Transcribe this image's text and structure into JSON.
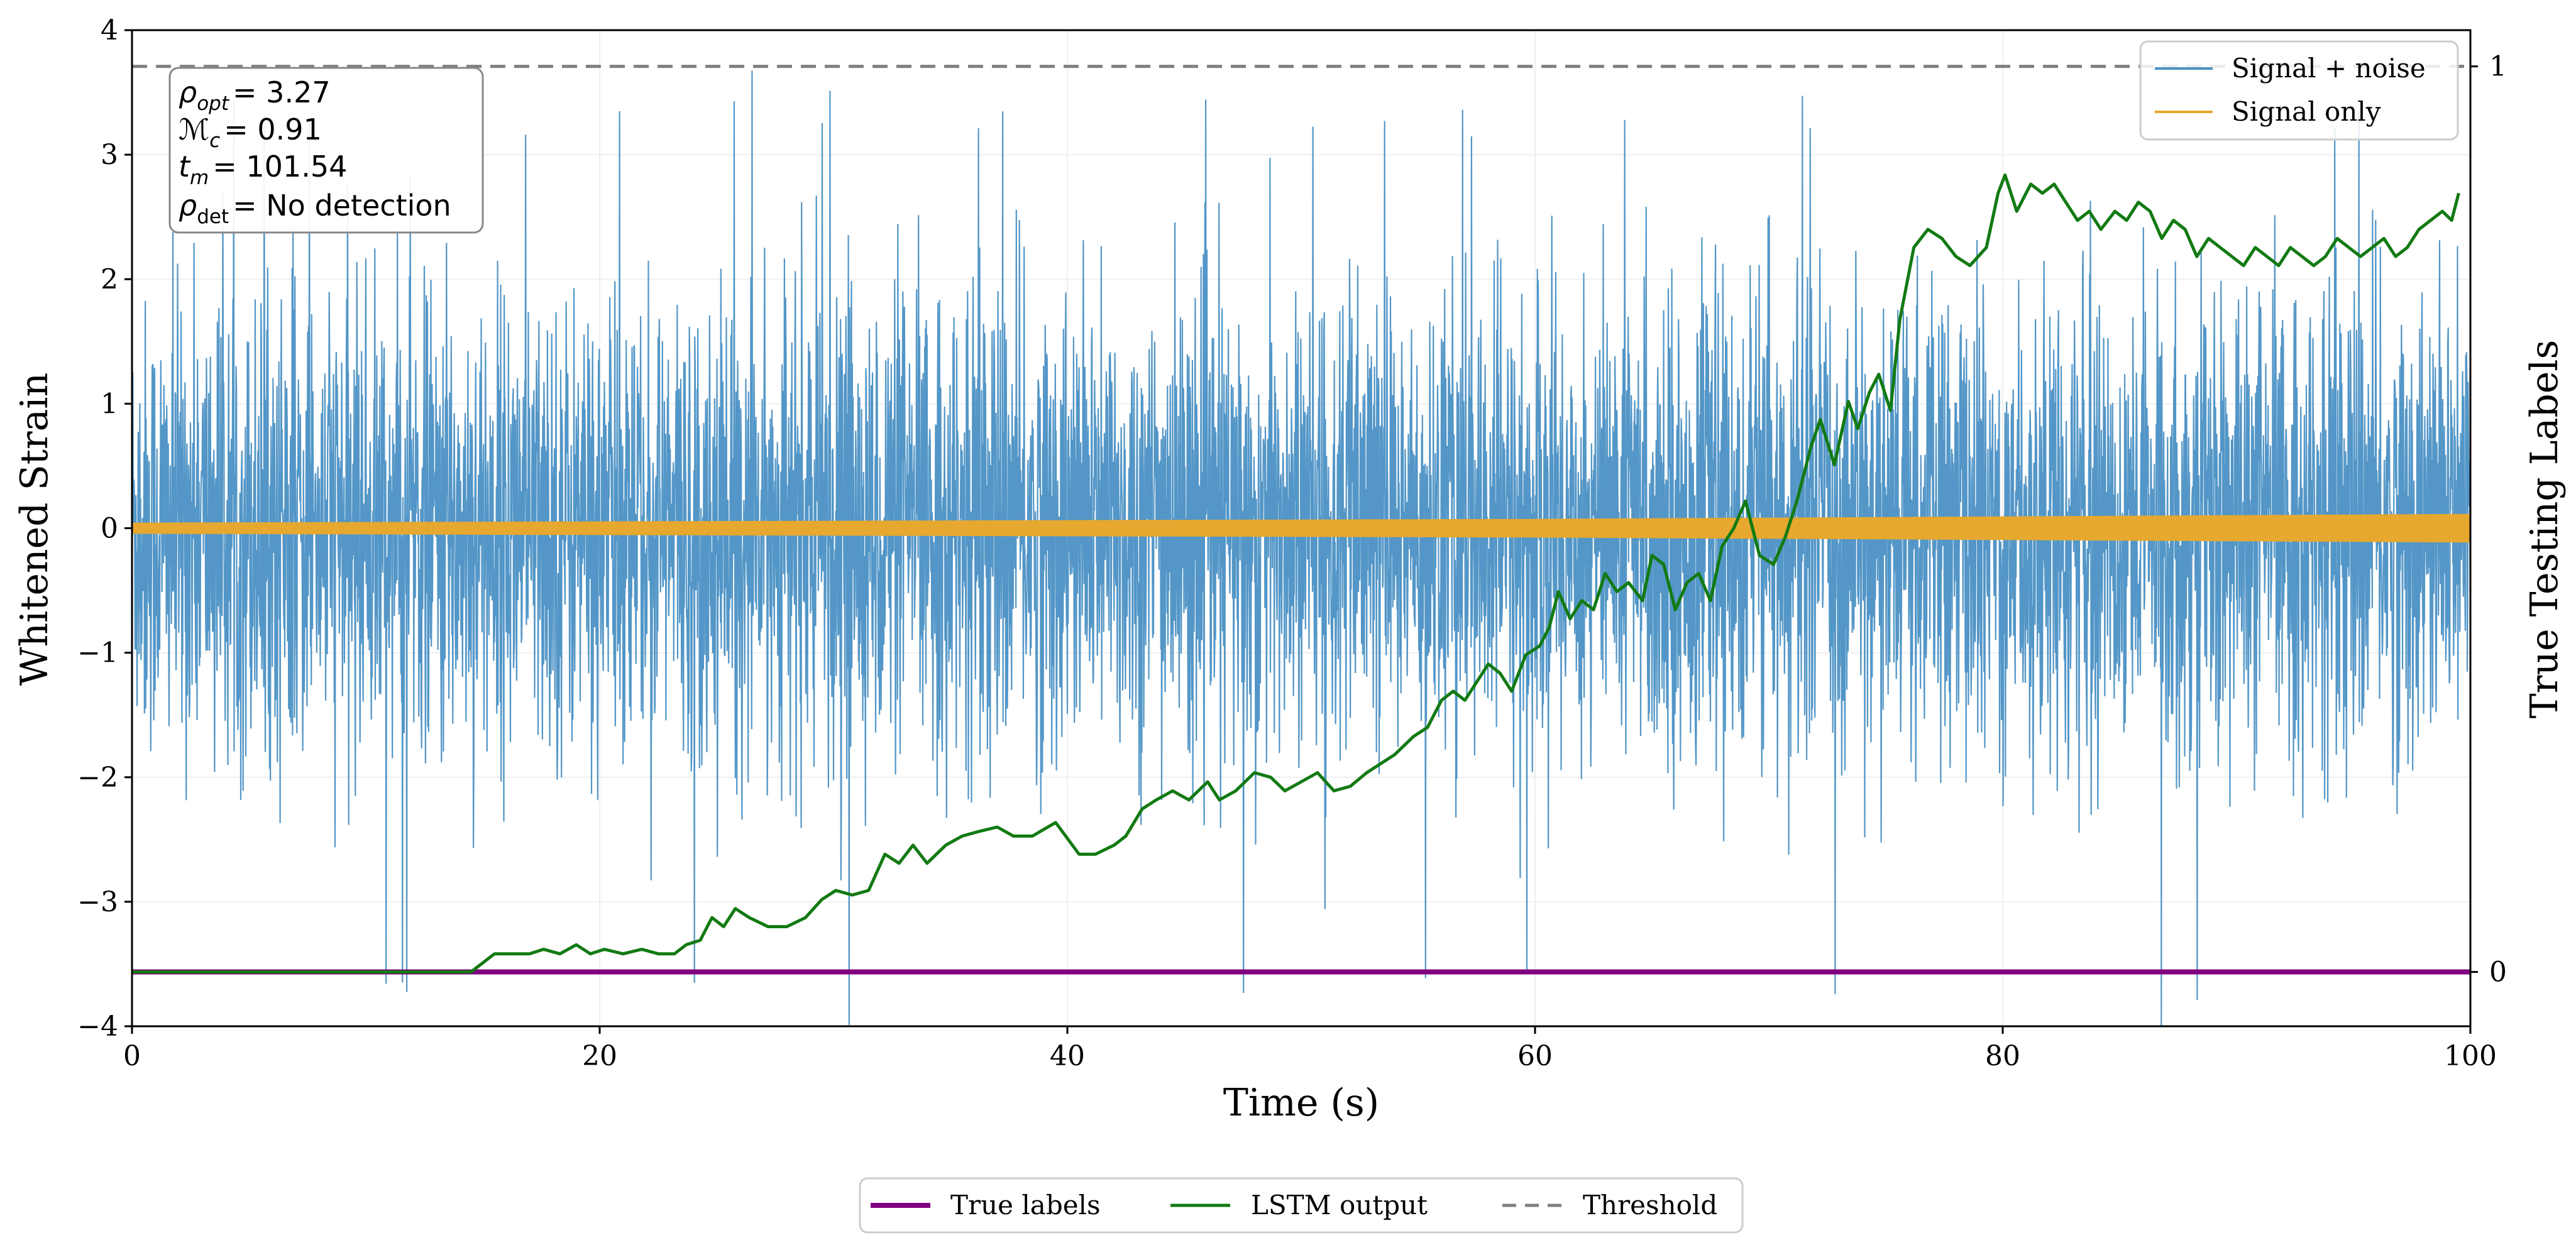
{
  "chart_data": {
    "type": "line",
    "xlabel": "Time (s)",
    "ylabel": "Whitened Strain",
    "ylabel_right": "True Testing Labels",
    "xlim": [
      0,
      100
    ],
    "ylim": [
      -4,
      4
    ],
    "ylim_right": [
      -0.06,
      1.04
    ],
    "x_ticks": [
      "0",
      "20",
      "40",
      "60",
      "80",
      "100"
    ],
    "y_ticks": [
      "−4",
      "−3",
      "−2",
      "−1",
      "0",
      "1",
      "2",
      "3",
      "4"
    ],
    "y_ticks_right": [
      "0",
      "1"
    ],
    "grid": true,
    "annotation": {
      "rho_opt": {
        "symbol": "ρ",
        "sub": "opt",
        "value": "= 3.27"
      },
      "chirp_mass": {
        "symbol": "ℳ",
        "sub": "c",
        "value": "= 0.91"
      },
      "merger_time": {
        "symbol": "t",
        "sub": "m",
        "value": "= 101.54"
      },
      "rho_det": {
        "symbol": "ρ",
        "sub": "det",
        "value": "= No detection"
      }
    },
    "legend_upper": {
      "placement": "top-right",
      "entries": [
        "Signal + noise",
        "Signal only"
      ]
    },
    "legend_lower": {
      "placement": "bottom-center",
      "entries": [
        "True labels",
        "LSTM output",
        "Threshold"
      ]
    },
    "series": [
      {
        "name": "Signal + noise",
        "axis": "left",
        "color": "#4a90c4",
        "kind": "noise",
        "x_range": [
          0,
          100
        ],
        "envelope_abs": 2.3,
        "spike_max": 3.7,
        "spike_min": -4.0
      },
      {
        "name": "Signal only",
        "axis": "left",
        "color": "#e6a82e",
        "kind": "band",
        "x": [
          0,
          20,
          40,
          60,
          80,
          100
        ],
        "amplitude": [
          0.04,
          0.05,
          0.06,
          0.07,
          0.09,
          0.11
        ]
      },
      {
        "name": "True labels",
        "axis": "right",
        "color": "#800080",
        "x": [
          0,
          100
        ],
        "y": [
          0,
          0
        ]
      },
      {
        "name": "LSTM output",
        "axis": "right",
        "color": "#127a12",
        "x": [
          0,
          14.5,
          15.5,
          16.2,
          17,
          17.6,
          18.3,
          19,
          19.6,
          20.2,
          21,
          21.8,
          22.5,
          23.2,
          23.7,
          24.3,
          24.8,
          25.3,
          25.8,
          26.4,
          27.2,
          28,
          28.8,
          29.5,
          30.1,
          30.8,
          31.5,
          32.2,
          32.8,
          33.4,
          34,
          34.8,
          35.5,
          36.2,
          37,
          37.7,
          38.5,
          39.5,
          40.5,
          41.2,
          42,
          42.5,
          43.2,
          43.8,
          44.5,
          45.2,
          46,
          46.5,
          47.2,
          48,
          48.7,
          49.3,
          50,
          50.7,
          51.4,
          52.1,
          52.8,
          53.4,
          54,
          54.8,
          55.4,
          56,
          56.5,
          57,
          57.5,
          58,
          58.5,
          59,
          59.6,
          60.2,
          60.6,
          61,
          61.5,
          62,
          62.5,
          63,
          63.5,
          64,
          64.6,
          65,
          65.5,
          66,
          66.5,
          67,
          67.5,
          68,
          68.5,
          69,
          69.6,
          70.2,
          70.7,
          71.2,
          71.8,
          72.2,
          72.8,
          73.4,
          73.8,
          74.3,
          74.7,
          75.2,
          75.6,
          76.2,
          76.8,
          77.4,
          78,
          78.6,
          79.3,
          79.8,
          80.1,
          80.6,
          81.2,
          81.7,
          82.2,
          82.7,
          83.2,
          83.7,
          84.2,
          84.8,
          85.3,
          85.8,
          86.3,
          86.8,
          87.3,
          87.8,
          88.3,
          88.8,
          89.3,
          89.8,
          90.3,
          90.8,
          91.3,
          91.8,
          92.3,
          92.8,
          93.3,
          93.8,
          94.3,
          94.8,
          95.3,
          95.8,
          96.3,
          96.8,
          97.3,
          97.8,
          98.3,
          98.8,
          99.2,
          99.5
        ],
        "y": [
          0,
          0,
          0.02,
          0.02,
          0.02,
          0.025,
          0.02,
          0.03,
          0.02,
          0.025,
          0.02,
          0.025,
          0.02,
          0.02,
          0.03,
          0.035,
          0.06,
          0.05,
          0.07,
          0.06,
          0.05,
          0.05,
          0.06,
          0.08,
          0.09,
          0.085,
          0.09,
          0.13,
          0.12,
          0.14,
          0.12,
          0.14,
          0.15,
          0.155,
          0.16,
          0.15,
          0.15,
          0.165,
          0.13,
          0.13,
          0.14,
          0.15,
          0.18,
          0.19,
          0.2,
          0.19,
          0.21,
          0.19,
          0.2,
          0.22,
          0.215,
          0.2,
          0.21,
          0.22,
          0.2,
          0.205,
          0.22,
          0.23,
          0.24,
          0.26,
          0.27,
          0.3,
          0.31,
          0.3,
          0.32,
          0.34,
          0.33,
          0.31,
          0.35,
          0.36,
          0.38,
          0.42,
          0.39,
          0.41,
          0.4,
          0.44,
          0.42,
          0.43,
          0.41,
          0.46,
          0.45,
          0.4,
          0.43,
          0.44,
          0.41,
          0.47,
          0.49,
          0.52,
          0.46,
          0.45,
          0.48,
          0.52,
          0.58,
          0.61,
          0.56,
          0.63,
          0.6,
          0.64,
          0.66,
          0.62,
          0.72,
          0.8,
          0.82,
          0.81,
          0.79,
          0.78,
          0.8,
          0.86,
          0.88,
          0.84,
          0.87,
          0.86,
          0.87,
          0.85,
          0.83,
          0.84,
          0.82,
          0.84,
          0.83,
          0.85,
          0.84,
          0.81,
          0.83,
          0.82,
          0.79,
          0.81,
          0.8,
          0.79,
          0.78,
          0.8,
          0.79,
          0.78,
          0.8,
          0.79,
          0.78,
          0.79,
          0.81,
          0.8,
          0.79,
          0.8,
          0.81,
          0.79,
          0.8,
          0.82,
          0.83,
          0.84,
          0.83,
          0.86
        ]
      },
      {
        "name": "Threshold",
        "axis": "right",
        "color": "#808080",
        "dash": true,
        "x": [
          0,
          100
        ],
        "y": [
          1,
          1
        ]
      }
    ]
  }
}
